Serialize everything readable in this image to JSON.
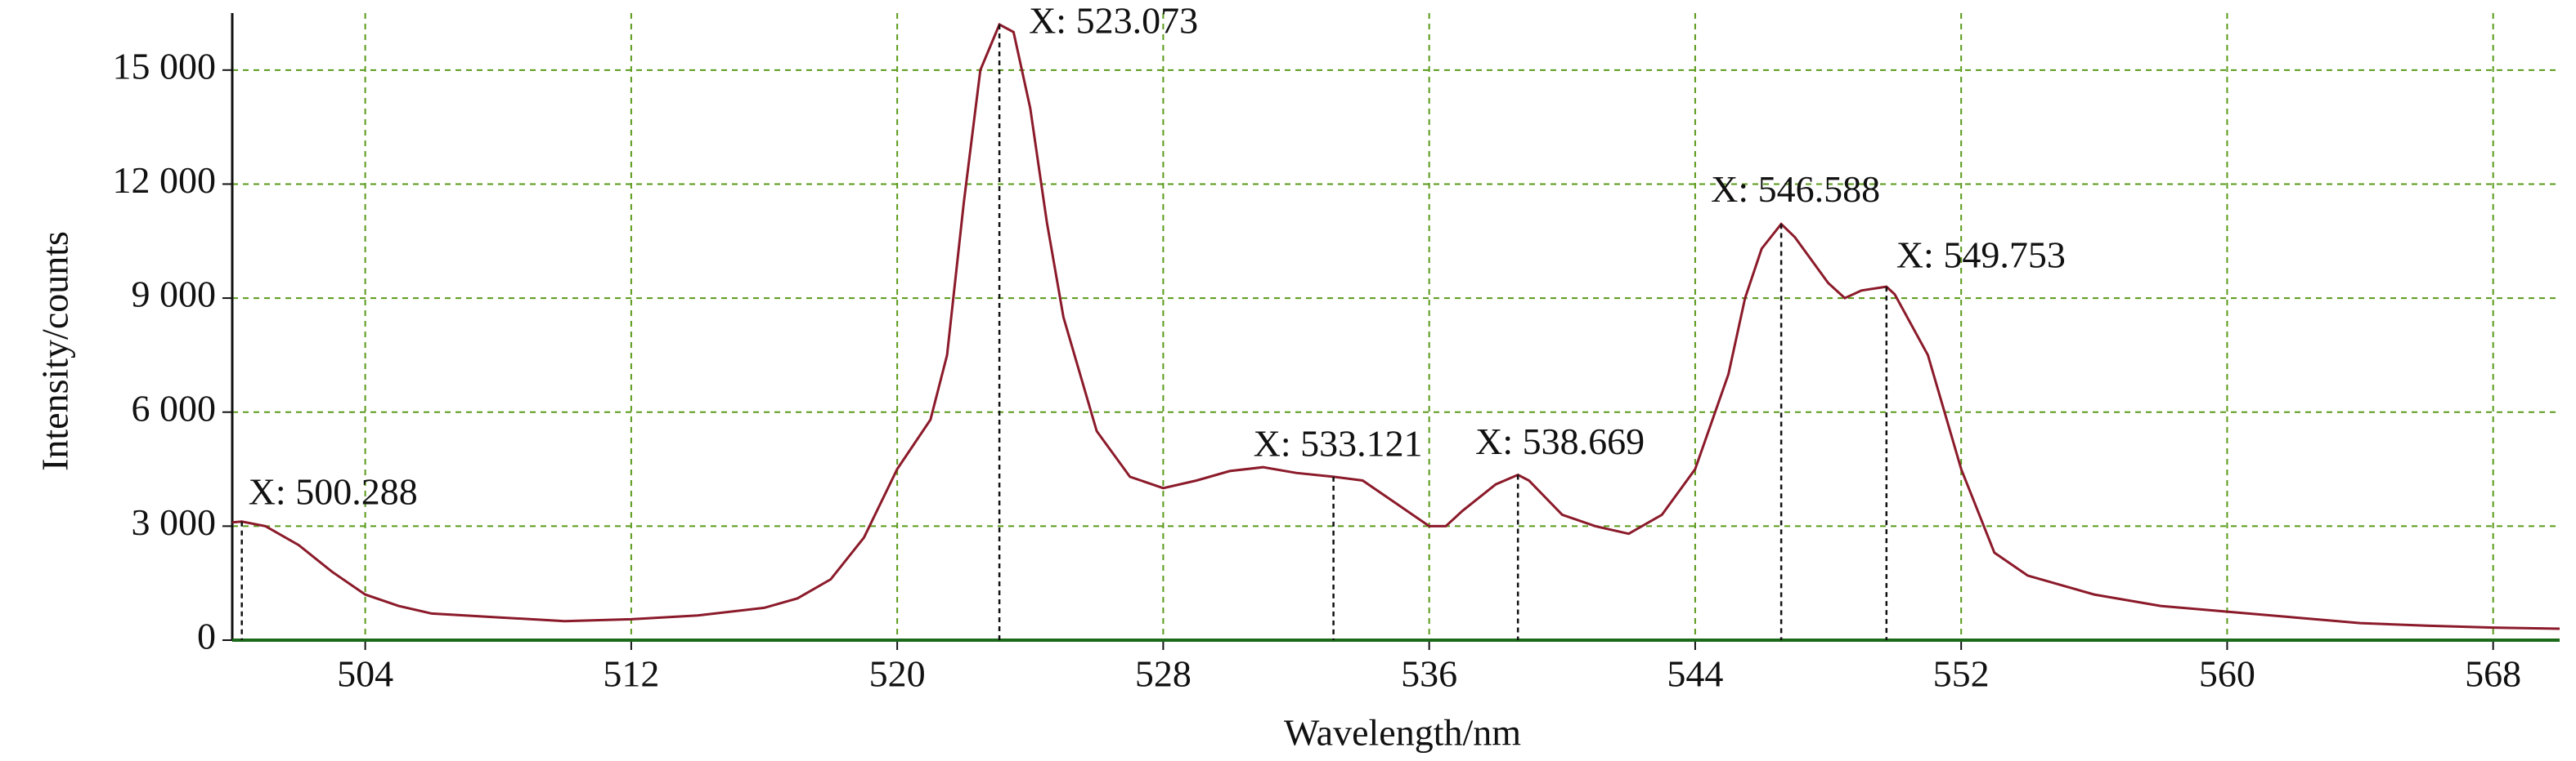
{
  "chart_data": {
    "type": "line",
    "xlabel": "Wavelength/nm",
    "ylabel": "Intensity/counts",
    "x": [
      500,
      500.288,
      501,
      502,
      503,
      504,
      505,
      506,
      508,
      510,
      512,
      514,
      516,
      517,
      518,
      519,
      520,
      521,
      521.5,
      522,
      522.5,
      523.073,
      523.5,
      524,
      524.5,
      525,
      526,
      527,
      528,
      529,
      530,
      531,
      532,
      533.121,
      534,
      535,
      536,
      536.5,
      537,
      538,
      538.669,
      539,
      540,
      541,
      542,
      543,
      544,
      545,
      545.5,
      546,
      546.588,
      547,
      548,
      548.5,
      549,
      549.753,
      550,
      551,
      552,
      553,
      554,
      556,
      558,
      560,
      562,
      564,
      566,
      568,
      570
    ],
    "values": [
      3100,
      3120,
      3000,
      2500,
      1800,
      1200,
      900,
      700,
      600,
      500,
      550,
      650,
      850,
      1100,
      1600,
      2700,
      4500,
      5800,
      7500,
      11500,
      15000,
      16200,
      16000,
      14000,
      11000,
      8500,
      5500,
      4300,
      4000,
      4200,
      4450,
      4550,
      4400,
      4300,
      4200,
      3600,
      3000,
      3000,
      3400,
      4100,
      4350,
      4200,
      3300,
      3000,
      2800,
      3300,
      4500,
      7000,
      9000,
      10300,
      10950,
      10600,
      9400,
      9000,
      9200,
      9300,
      9100,
      7500,
      4500,
      2300,
      1700,
      1200,
      900,
      750,
      600,
      450,
      380,
      330,
      300
    ],
    "color": "#8b1a2a",
    "xlim": [
      500,
      570
    ],
    "xticks": [
      504,
      512,
      520,
      528,
      536,
      544,
      552,
      560,
      568
    ],
    "ylim": [
      0,
      16500
    ],
    "yticks": [
      0,
      {
        "value": 3000,
        "label": "3 000"
      },
      {
        "value": 6000,
        "label": "6 000"
      },
      {
        "value": 9000,
        "label": "9 000"
      },
      {
        "value": 12000,
        "label": "12 000"
      },
      {
        "value": 15000,
        "label": "15 000"
      }
    ],
    "grid": true,
    "annotations": [
      {
        "label": "X: 500.288",
        "x": 500.288,
        "y": 3120
      },
      {
        "label": "X: 523.073",
        "x": 523.073,
        "y": 16200
      },
      {
        "label": "X: 533.121",
        "x": 533.121,
        "y": 4300
      },
      {
        "label": "X: 538.669",
        "x": 538.669,
        "y": 4350
      },
      {
        "label": "X: 546.588",
        "x": 546.588,
        "y": 10950
      },
      {
        "label": "X: 549.753",
        "x": 549.753,
        "y": 9300
      }
    ]
  }
}
